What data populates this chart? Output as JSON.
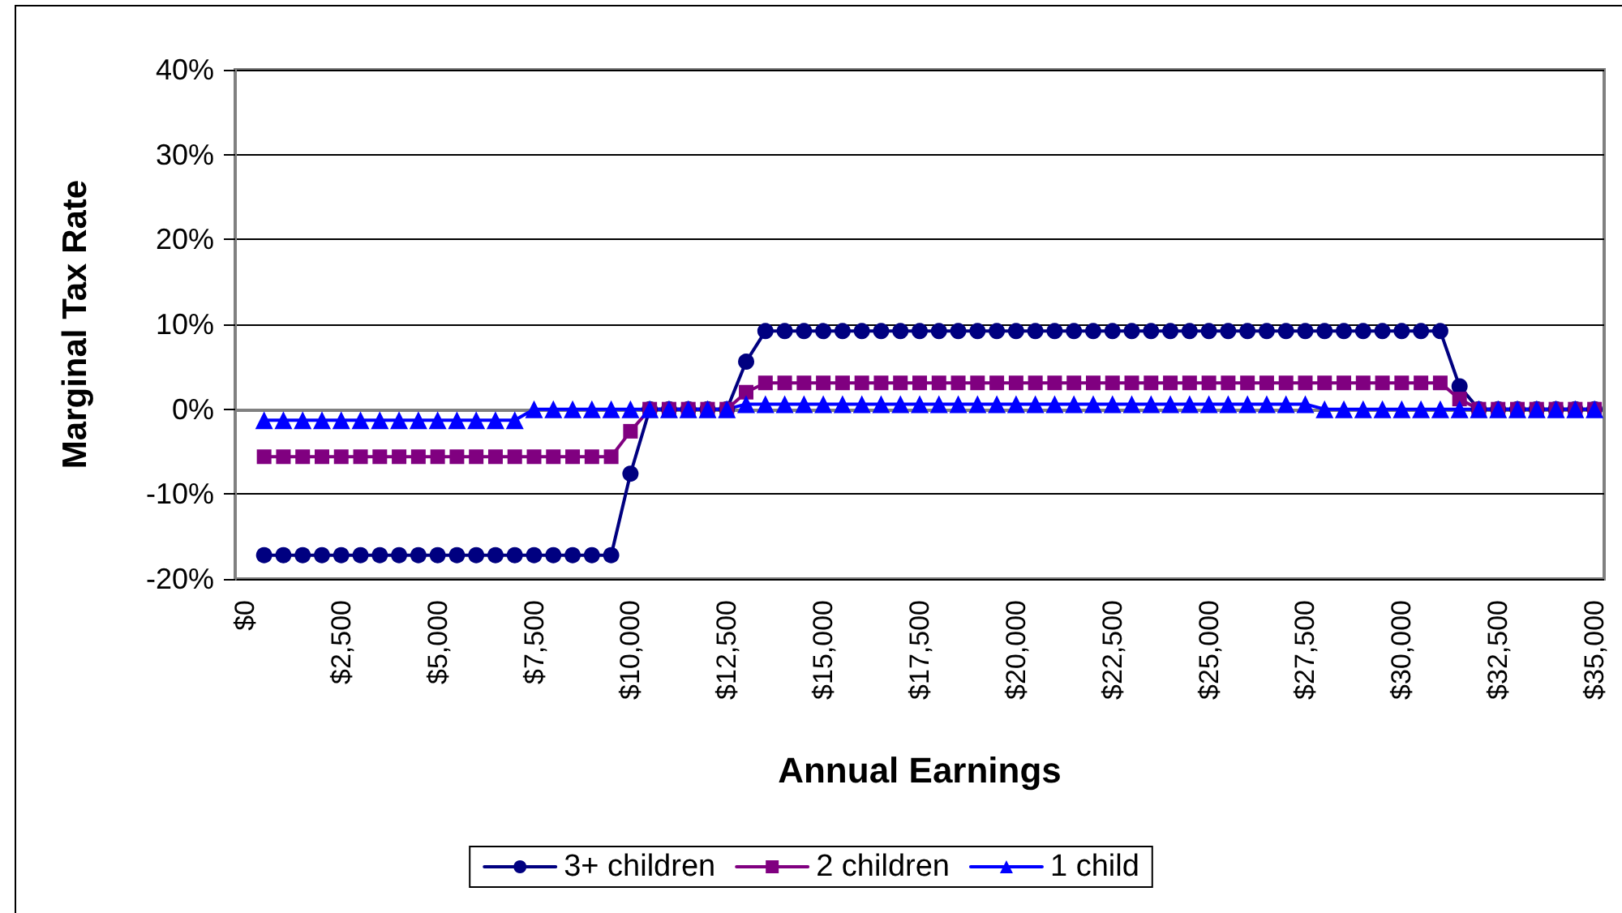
{
  "chart_data": {
    "type": "line",
    "xlabel": "Annual Earnings",
    "ylabel": "Marginal Tax Rate",
    "categories": [
      "$0",
      null,
      null,
      null,
      null,
      "$2,500",
      null,
      null,
      null,
      null,
      "$5,000",
      null,
      null,
      null,
      null,
      "$7,500",
      null,
      null,
      null,
      null,
      "$10,000",
      null,
      null,
      null,
      null,
      "$12,500",
      null,
      null,
      null,
      null,
      "$15,000",
      null,
      null,
      null,
      null,
      "$17,500",
      null,
      null,
      null,
      null,
      "$20,000",
      null,
      null,
      null,
      null,
      "$22,500",
      null,
      null,
      null,
      null,
      "$25,000",
      null,
      null,
      null,
      null,
      "$27,500",
      null,
      null,
      null,
      null,
      "$30,000",
      null,
      null,
      null,
      null,
      "$32,500",
      null,
      null,
      null,
      null,
      "$35,000"
    ],
    "series": [
      {
        "name": "3+ children",
        "color": "#000080",
        "marker": "circle",
        "values": [
          null,
          -17.2,
          -17.2,
          -17.2,
          -17.2,
          -17.2,
          -17.2,
          -17.2,
          -17.2,
          -17.2,
          -17.2,
          -17.2,
          -17.2,
          -17.2,
          -17.2,
          -17.2,
          -17.2,
          -17.2,
          -17.2,
          -17.2,
          -7.6,
          0,
          0,
          0,
          0,
          0,
          5.6,
          9.2,
          9.2,
          9.2,
          9.2,
          9.2,
          9.2,
          9.2,
          9.2,
          9.2,
          9.2,
          9.2,
          9.2,
          9.2,
          9.2,
          9.2,
          9.2,
          9.2,
          9.2,
          9.2,
          9.2,
          9.2,
          9.2,
          9.2,
          9.2,
          9.2,
          9.2,
          9.2,
          9.2,
          9.2,
          9.2,
          9.2,
          9.2,
          9.2,
          9.2,
          9.2,
          9.2,
          2.7,
          0,
          0,
          0,
          0,
          0,
          0,
          0
        ]
      },
      {
        "name": "2 children",
        "color": "#800080",
        "marker": "square",
        "values": [
          null,
          -5.6,
          -5.6,
          -5.6,
          -5.6,
          -5.6,
          -5.6,
          -5.6,
          -5.6,
          -5.6,
          -5.6,
          -5.6,
          -5.6,
          -5.6,
          -5.6,
          -5.6,
          -5.6,
          -5.6,
          -5.6,
          -5.6,
          -2.6,
          0,
          0,
          0,
          0,
          0,
          2.0,
          3.1,
          3.1,
          3.1,
          3.1,
          3.1,
          3.1,
          3.1,
          3.1,
          3.1,
          3.1,
          3.1,
          3.1,
          3.1,
          3.1,
          3.1,
          3.1,
          3.1,
          3.1,
          3.1,
          3.1,
          3.1,
          3.1,
          3.1,
          3.1,
          3.1,
          3.1,
          3.1,
          3.1,
          3.1,
          3.1,
          3.1,
          3.1,
          3.1,
          3.1,
          3.1,
          3.1,
          1.2,
          0,
          0,
          0,
          0,
          0,
          0,
          0
        ]
      },
      {
        "name": "1 child",
        "color": "#0000ff",
        "marker": "triangle",
        "values": [
          null,
          -1.3,
          -1.3,
          -1.3,
          -1.3,
          -1.3,
          -1.3,
          -1.3,
          -1.3,
          -1.3,
          -1.3,
          -1.3,
          -1.3,
          -1.3,
          -1.3,
          0,
          0,
          0,
          0,
          0,
          0,
          0,
          0,
          0,
          0,
          0,
          0.6,
          0.6,
          0.6,
          0.6,
          0.6,
          0.6,
          0.6,
          0.6,
          0.6,
          0.6,
          0.6,
          0.6,
          0.6,
          0.6,
          0.6,
          0.6,
          0.6,
          0.6,
          0.6,
          0.6,
          0.6,
          0.6,
          0.6,
          0.6,
          0.6,
          0.6,
          0.6,
          0.6,
          0.6,
          0.6,
          0,
          0,
          0,
          0,
          0,
          0,
          0,
          0,
          0,
          0,
          0,
          0,
          0,
          0,
          0
        ]
      }
    ],
    "ylim": [
      -20,
      40
    ],
    "yticks": [
      {
        "value": -20,
        "label": "-20%"
      },
      {
        "value": -10,
        "label": "-10%"
      },
      {
        "value": 0,
        "label": "0%"
      },
      {
        "value": 10,
        "label": "10%"
      },
      {
        "value": 20,
        "label": "20%"
      },
      {
        "value": 30,
        "label": "30%"
      },
      {
        "value": 40,
        "label": "40%"
      }
    ],
    "grid": "y",
    "legend": "bottom",
    "line_style": "solid"
  }
}
